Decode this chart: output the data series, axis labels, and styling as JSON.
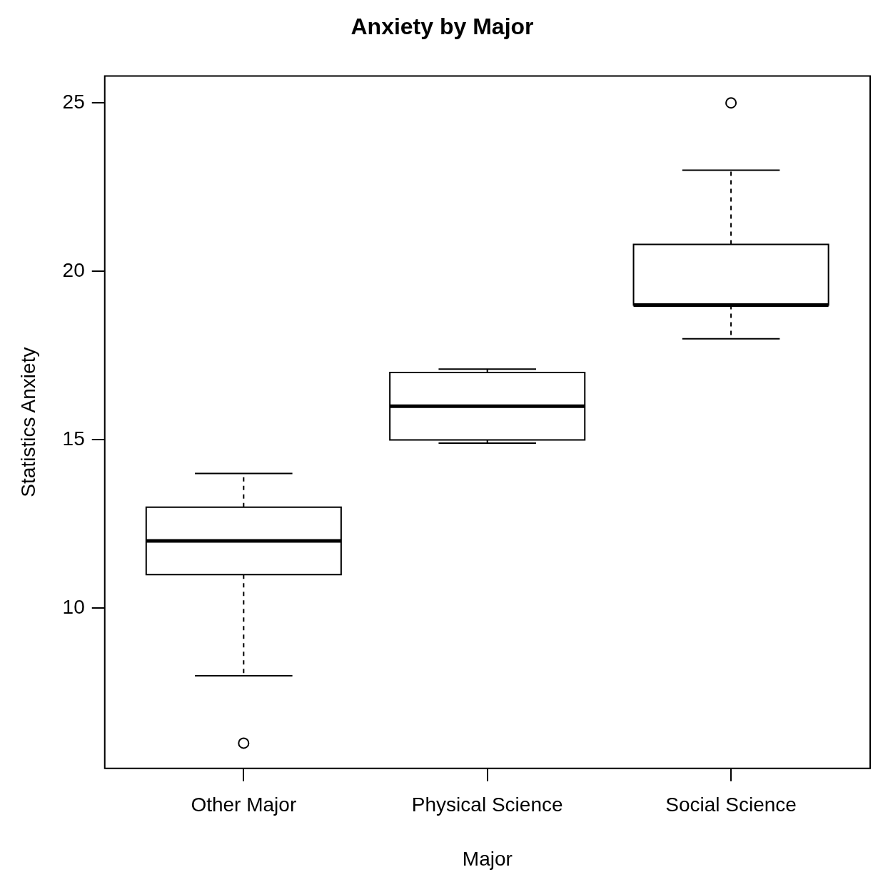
{
  "chart_data": {
    "type": "box",
    "title": "Anxiety by Major",
    "xlabel": "Major",
    "ylabel": "Statistics Anxiety",
    "categories": [
      "Other Major",
      "Physical Science",
      "Social Science"
    ],
    "boxes": [
      {
        "low": 8,
        "q1": 11,
        "median": 12,
        "q3": 13,
        "high": 14,
        "outliers": [
          6
        ]
      },
      {
        "low": 14.9,
        "q1": 15,
        "median": 16,
        "q3": 17,
        "high": 17.1
      },
      {
        "low": 18,
        "q1": 19,
        "median": 19,
        "q3": 20.8,
        "high": 23,
        "outliers": [
          25
        ]
      }
    ],
    "color": "#000000",
    "ylim": [
      5.25,
      25.8
    ],
    "yticks": [
      10,
      15,
      20,
      25
    ],
    "grid": false,
    "legend": false,
    "marker": "circle"
  }
}
